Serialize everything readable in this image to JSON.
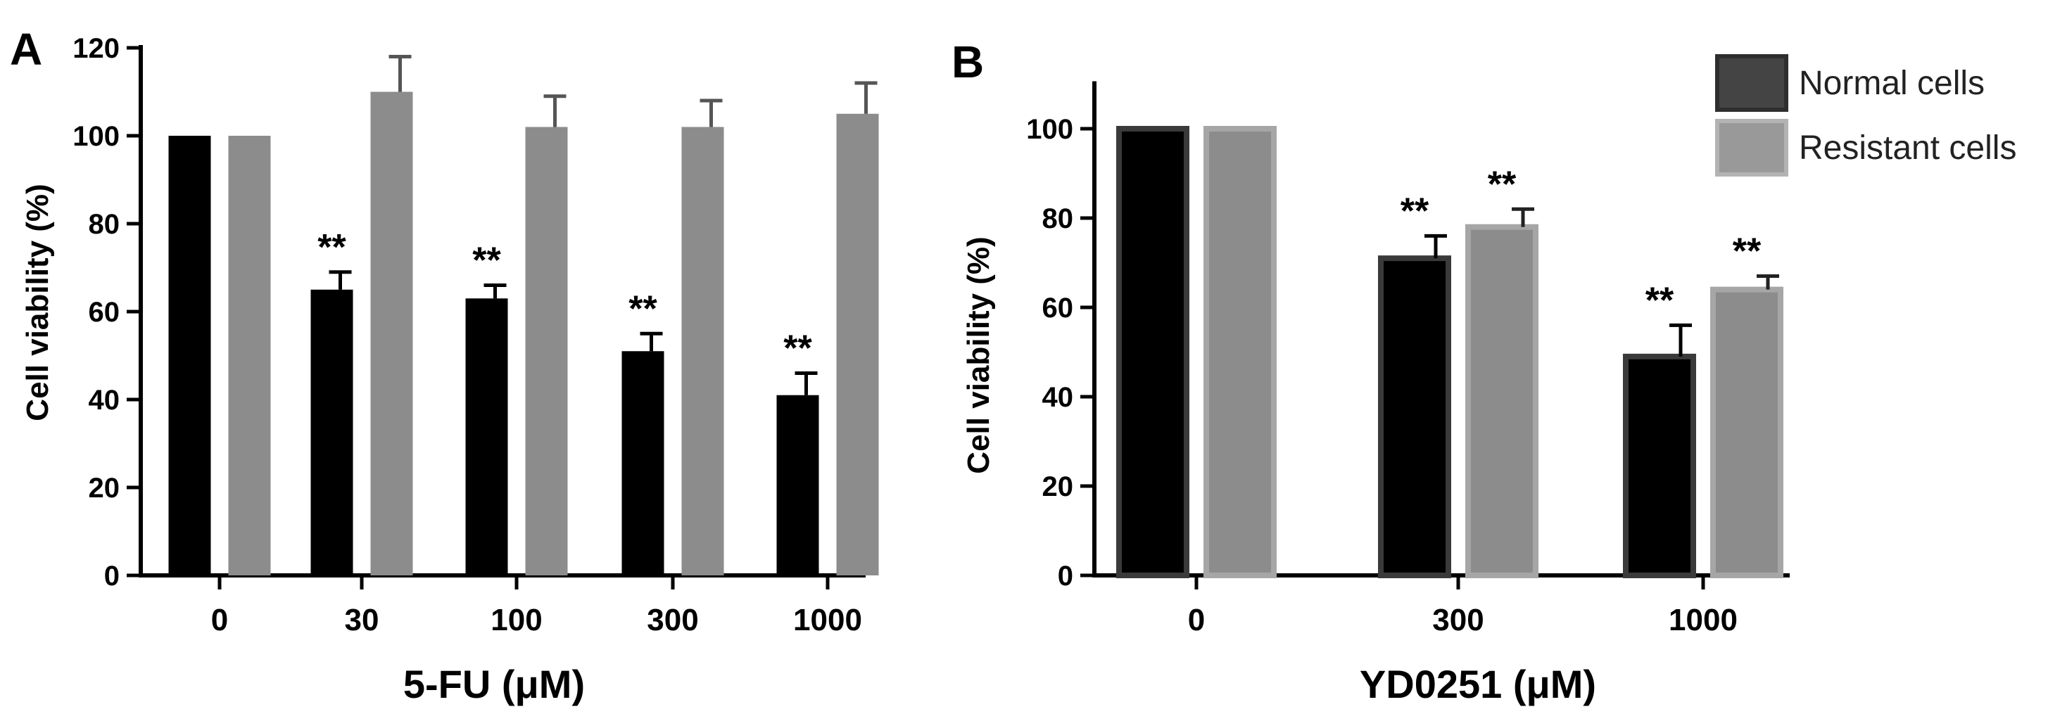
{
  "colors": {
    "normal_fill": "#000000",
    "normal_stroke_b": "#3a3a3a",
    "resistant_fill": "#8c8c8c",
    "resistant_stroke_b": "#a6a6a6",
    "legend_normal": "#444444",
    "legend_resistant": "#999999"
  },
  "legend": {
    "normal": "Normal cells",
    "resistant": "Resistant cells"
  },
  "chart_data": [
    {
      "panel": "A",
      "type": "bar",
      "title": "",
      "xlabel": "5-FU (μM)",
      "ylabel": "Cell viability (%)",
      "ylim": [
        0,
        120
      ],
      "yticks": [
        0,
        20,
        40,
        60,
        80,
        100,
        120
      ],
      "categories": [
        "0",
        "30",
        "100",
        "300",
        "1000"
      ],
      "series": [
        {
          "name": "Normal cells",
          "values": [
            100,
            65,
            63,
            51,
            41
          ],
          "errors": [
            0,
            4,
            3,
            4,
            5
          ]
        },
        {
          "name": "Resistant cells",
          "values": [
            100,
            110,
            102,
            102,
            105
          ],
          "errors": [
            0,
            8,
            7,
            6,
            7
          ]
        }
      ],
      "annotations": [
        {
          "category": "30",
          "series": "Normal cells",
          "text": "**"
        },
        {
          "category": "100",
          "series": "Normal cells",
          "text": "**"
        },
        {
          "category": "300",
          "series": "Normal cells",
          "text": "**"
        },
        {
          "category": "1000",
          "series": "Normal cells",
          "text": "**"
        }
      ]
    },
    {
      "panel": "B",
      "type": "bar",
      "title": "",
      "xlabel": "YD0251 (μM)",
      "ylabel": "Cell viability (%)",
      "ylim": [
        0,
        110
      ],
      "yticks": [
        0,
        20,
        40,
        60,
        80,
        100
      ],
      "categories": [
        "0",
        "300",
        "1000"
      ],
      "series": [
        {
          "name": "Normal cells",
          "values": [
            100,
            71,
            49
          ],
          "errors": [
            0,
            5,
            7
          ]
        },
        {
          "name": "Resistant cells",
          "values": [
            100,
            78,
            64
          ],
          "errors": [
            0,
            4,
            3
          ]
        }
      ],
      "annotations": [
        {
          "category": "300",
          "series": "Normal cells",
          "text": "**"
        },
        {
          "category": "300",
          "series": "Resistant cells",
          "text": "**"
        },
        {
          "category": "1000",
          "series": "Normal cells",
          "text": "**"
        },
        {
          "category": "1000",
          "series": "Resistant cells",
          "text": "**"
        }
      ]
    }
  ]
}
